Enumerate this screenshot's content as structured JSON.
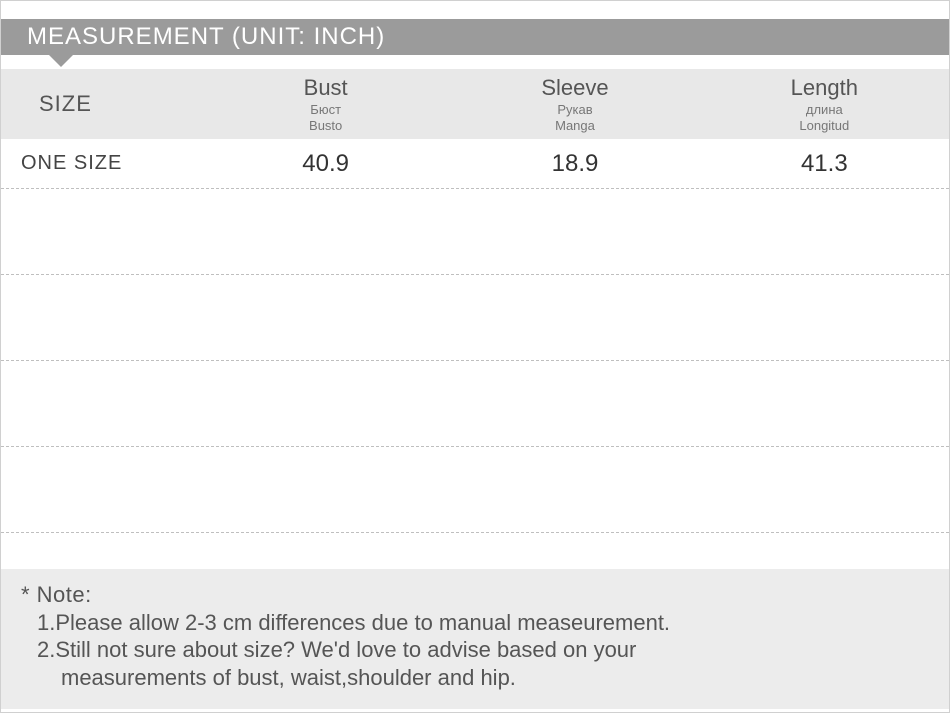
{
  "title": "MEASUREMENT (UNIT: INCH)",
  "header": {
    "size_label": "SIZE",
    "columns": [
      {
        "main": "Bust",
        "sub": "Бюст",
        "sub2": "Busto"
      },
      {
        "main": "Sleeve",
        "sub": "Рукав",
        "sub2": "Manga"
      },
      {
        "main": "Length",
        "sub": "длина",
        "sub2": "Longitud"
      }
    ]
  },
  "data_row": {
    "size": "ONE SIZE",
    "values": [
      "40.9",
      "18.9",
      "41.3"
    ]
  },
  "note": {
    "label": "* Note:",
    "line1": "1.Please allow 2-3 cm differences due to manual measeurement.",
    "line2": "2.Still not sure about size? We'd love to advise based on your",
    "line3": "measurements of bust, waist,shoulder and hip."
  },
  "style": {
    "title_bg": "#9b9b9b",
    "title_color": "#ffffff",
    "header_bg": "#e8e8e8",
    "note_bg": "#ececec",
    "text_color": "#555555",
    "value_color": "#333333",
    "dash_color": "#bfbfbf",
    "background": "#ffffff",
    "title_fontsize": 24,
    "header_main_fontsize": 22,
    "header_sub_fontsize": 13,
    "value_fontsize": 24,
    "note_fontsize": 22
  }
}
